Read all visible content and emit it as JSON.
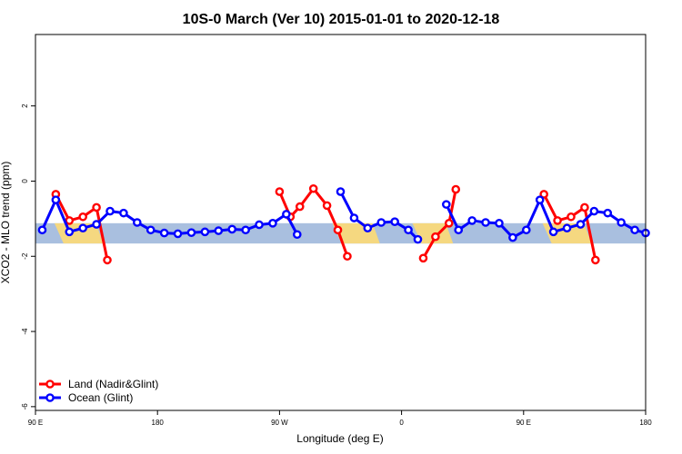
{
  "chart_data": {
    "type": "line",
    "title": "10S-0 March (Ver 10)   2015-01-01 to 2020-12-18",
    "xlabel": "Longitude (deg E)",
    "ylabel": "XCO2 - MLO trend (ppm)",
    "xlim": [
      90,
      450
    ],
    "ylim": [
      -6.1,
      3.9
    ],
    "x_ticks": [
      90,
      180,
      270,
      360,
      450
    ],
    "x_tick_labels": [
      "90 E",
      "180",
      "90 W",
      "0",
      "90 E",
      "180"
    ],
    "x_tick_positions": [
      90,
      180,
      270,
      360,
      450,
      540
    ],
    "y_ticks": [
      -6,
      -4,
      -2,
      0,
      2
    ],
    "y_tick_labels": [
      "-6",
      "-4",
      "-2",
      "0",
      "2"
    ],
    "background_band": {
      "y_range": [
        -1.66,
        -1.12
      ],
      "ocean_color": "#a9bfdf",
      "land_color": "#f9d97a"
    },
    "land_segments": [
      [
        104,
        140
      ],
      [
        309,
        344
      ],
      [
        368,
        398
      ],
      [
        464,
        500
      ]
    ],
    "legend_position": "bottom-left",
    "series": [
      {
        "name": "Land (Nadir&Glint)",
        "color": "#ff0000",
        "segments": [
          {
            "x": [
              105,
              115,
              125,
              135,
              143
            ],
            "y": [
              -0.35,
              -1.05,
              -0.95,
              -0.7,
              -2.1
            ]
          },
          {
            "x": [
              270,
              278,
              285,
              295,
              305,
              313,
              320
            ],
            "y": [
              -0.28,
              -0.95,
              -0.68,
              -0.2,
              -0.65,
              -1.3,
              -2.0
            ]
          },
          {
            "x": [
              376,
              385,
              395,
              400
            ],
            "y": [
              -2.05,
              -1.48,
              -1.12,
              -0.22
            ]
          },
          {
            "x": [
              465,
              475,
              485,
              495,
              503
            ],
            "y": [
              -0.35,
              -1.05,
              -0.95,
              -0.7,
              -2.1
            ]
          }
        ]
      },
      {
        "name": "Ocean (Glint)",
        "color": "#0000ff",
        "segments": [
          {
            "x": [
              95,
              105,
              115,
              125,
              135,
              145,
              155,
              165,
              175,
              185,
              195,
              205,
              215,
              225,
              235,
              245,
              255,
              265,
              275,
              283
            ],
            "y": [
              -1.3,
              -0.5,
              -1.35,
              -1.25,
              -1.15,
              -0.8,
              -0.85,
              -1.1,
              -1.3,
              -1.38,
              -1.4,
              -1.37,
              -1.35,
              -1.32,
              -1.28,
              -1.3,
              -1.16,
              -1.12,
              -0.88,
              -1.42
            ]
          },
          {
            "x": [
              315,
              325,
              335,
              345,
              355,
              365,
              372
            ],
            "y": [
              -0.28,
              -0.98,
              -1.25,
              -1.1,
              -1.08,
              -1.3,
              -1.55
            ]
          },
          {
            "x": [
              393,
              402,
              412,
              422,
              432,
              442,
              452,
              462,
              472,
              482,
              492,
              502,
              512,
              522,
              532,
              540
            ],
            "y": [
              -0.62,
              -1.3,
              -1.05,
              -1.1,
              -1.12,
              -1.5,
              -1.3,
              -0.5,
              -1.35,
              -1.25,
              -1.15,
              -0.8,
              -0.85,
              -1.1,
              -1.3,
              -1.38
            ]
          }
        ]
      }
    ]
  }
}
